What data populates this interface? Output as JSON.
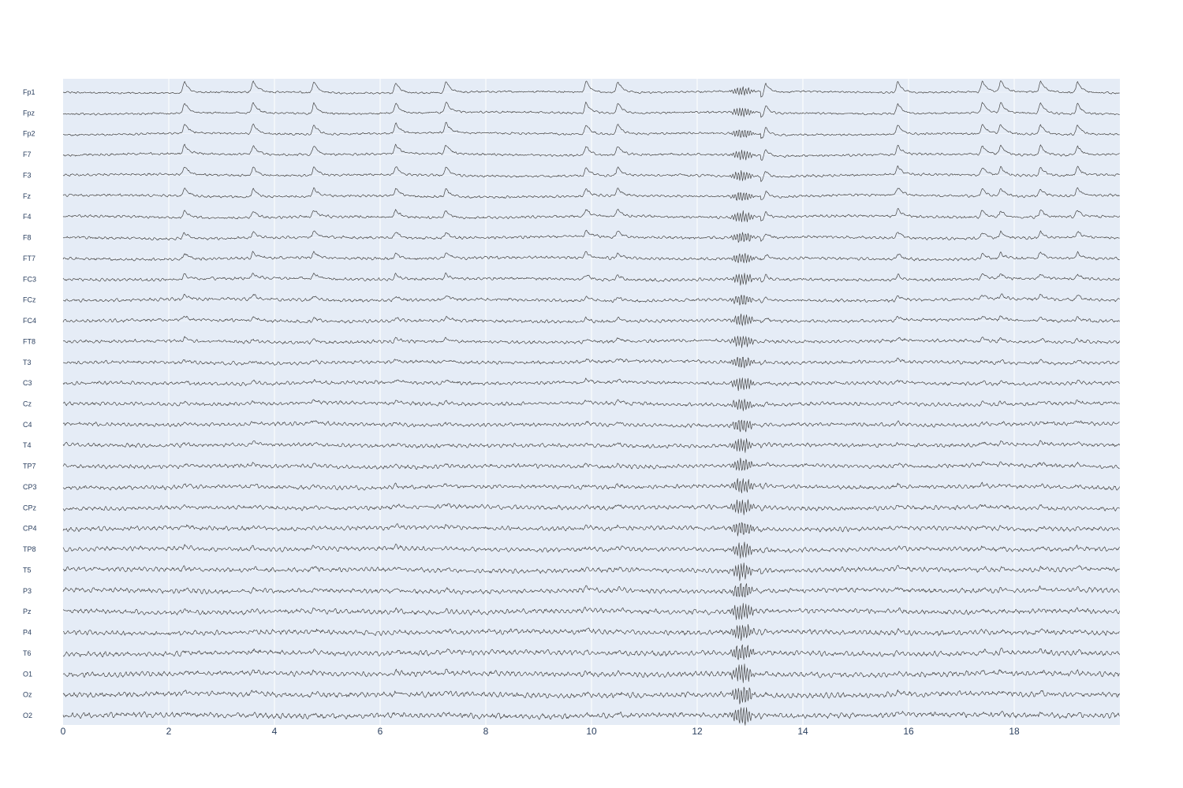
{
  "chart_data": {
    "type": "line",
    "title": "",
    "xlabel": "",
    "ylabel": "",
    "xlim": [
      0,
      20
    ],
    "x_ticks": [
      0,
      2,
      4,
      6,
      8,
      10,
      12,
      14,
      16,
      18
    ],
    "x_tick_labels": [
      "0",
      "2",
      "4",
      "6",
      "8",
      "10",
      "12",
      "14",
      "16",
      "18"
    ],
    "grid": true,
    "legend": "none",
    "colors": {
      "plot_background": "#e5ecf6",
      "trace": "#444444",
      "grid": "#ffffff",
      "text": "#2a3f5f"
    },
    "events_seconds": [
      2.3,
      3.6,
      4.75,
      6.3,
      7.25,
      9.9,
      10.5,
      13.3,
      15.8,
      17.4,
      17.75,
      18.5,
      19.2
    ],
    "burst_window_seconds": [
      12.6,
      13.1
    ],
    "series": [
      {
        "name": "Fp1"
      },
      {
        "name": "Fpz"
      },
      {
        "name": "Fp2"
      },
      {
        "name": "F7"
      },
      {
        "name": "F3"
      },
      {
        "name": "Fz"
      },
      {
        "name": "F4"
      },
      {
        "name": "F8"
      },
      {
        "name": "FT7"
      },
      {
        "name": "FC3"
      },
      {
        "name": "FCz"
      },
      {
        "name": "FC4"
      },
      {
        "name": "FT8"
      },
      {
        "name": "T3"
      },
      {
        "name": "C3"
      },
      {
        "name": "Cz"
      },
      {
        "name": "C4"
      },
      {
        "name": "T4"
      },
      {
        "name": "TP7"
      },
      {
        "name": "CP3"
      },
      {
        "name": "CPz"
      },
      {
        "name": "CP4"
      },
      {
        "name": "TP8"
      },
      {
        "name": "T5"
      },
      {
        "name": "P3"
      },
      {
        "name": "Pz"
      },
      {
        "name": "P4"
      },
      {
        "name": "T6"
      },
      {
        "name": "O1"
      },
      {
        "name": "Oz"
      },
      {
        "name": "O2"
      }
    ]
  }
}
